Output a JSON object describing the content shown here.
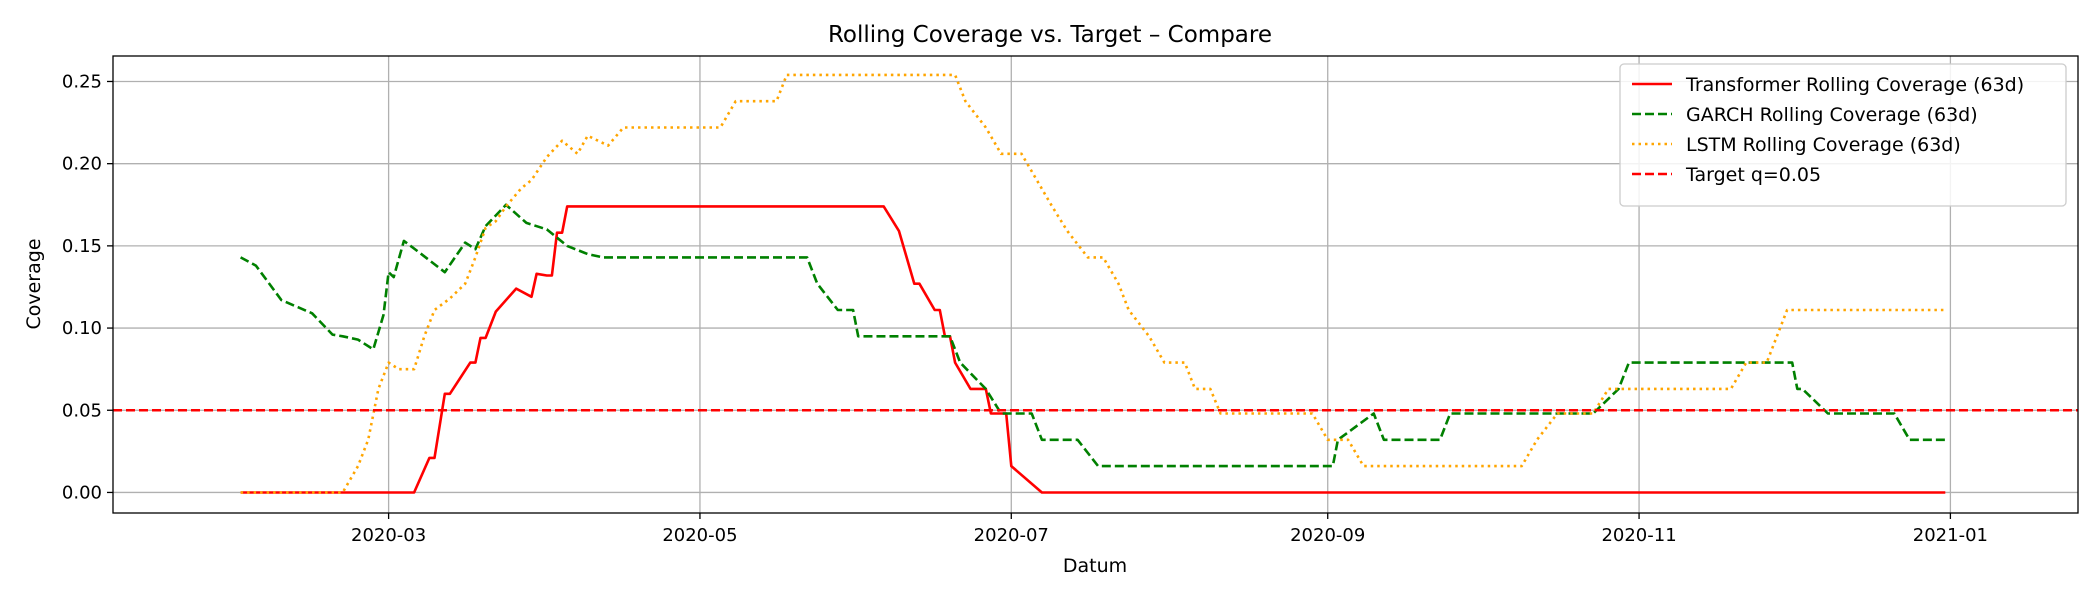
{
  "chart_data": {
    "type": "line",
    "title": "Rolling Coverage vs. Target – Compare",
    "xlabel": "Datum",
    "ylabel": "Coverage",
    "xlim": [
      "2020-01-07",
      "2021-01-26"
    ],
    "ylim": [
      -0.0125,
      0.2655
    ],
    "x_ticks": [
      "2020-03-01",
      "2020-05-01",
      "2020-07-01",
      "2020-09-01",
      "2020-11-01",
      "2021-01-01"
    ],
    "x_tick_labels": [
      "2020-03",
      "2020-05",
      "2020-07",
      "2020-09",
      "2020-11",
      "2021-01"
    ],
    "y_ticks": [
      0.0,
      0.05,
      0.1,
      0.15,
      0.2,
      0.25
    ],
    "y_tick_labels": [
      "0.00",
      "0.05",
      "0.10",
      "0.15",
      "0.20",
      "0.25"
    ],
    "grid": true,
    "legend_position": "upper-right",
    "series": [
      {
        "name": "Transformer Rolling Coverage (63d)",
        "color": "#ff0000",
        "style": "solid",
        "points": [
          [
            "2020-02-01",
            0.0
          ],
          [
            "2020-03-06",
            0.0
          ],
          [
            "2020-03-09",
            0.021
          ],
          [
            "2020-03-10",
            0.021
          ],
          [
            "2020-03-12",
            0.06
          ],
          [
            "2020-03-13",
            0.06
          ],
          [
            "2020-03-17",
            0.079
          ],
          [
            "2020-03-18",
            0.079
          ],
          [
            "2020-03-19",
            0.094
          ],
          [
            "2020-03-20",
            0.094
          ],
          [
            "2020-03-22",
            0.11
          ],
          [
            "2020-03-26",
            0.124
          ],
          [
            "2020-03-29",
            0.119
          ],
          [
            "2020-03-30",
            0.133
          ],
          [
            "2020-04-01",
            0.132
          ],
          [
            "2020-04-02",
            0.132
          ],
          [
            "2020-04-03",
            0.158
          ],
          [
            "2020-04-04",
            0.158
          ],
          [
            "2020-04-05",
            0.174
          ],
          [
            "2020-06-06",
            0.174
          ],
          [
            "2020-06-09",
            0.159
          ],
          [
            "2020-06-12",
            0.127
          ],
          [
            "2020-06-13",
            0.127
          ],
          [
            "2020-06-16",
            0.111
          ],
          [
            "2020-06-17",
            0.111
          ],
          [
            "2020-06-18",
            0.095
          ],
          [
            "2020-06-19",
            0.095
          ],
          [
            "2020-06-20",
            0.079
          ],
          [
            "2020-06-23",
            0.063
          ],
          [
            "2020-06-26",
            0.063
          ],
          [
            "2020-06-27",
            0.048
          ],
          [
            "2020-06-30",
            0.048
          ],
          [
            "2020-07-01",
            0.016
          ],
          [
            "2020-07-07",
            0.0
          ],
          [
            "2020-12-31",
            0.0
          ]
        ]
      },
      {
        "name": "GARCH Rolling Coverage (63d)",
        "color": "#008000",
        "style": "dashed",
        "points": [
          [
            "2020-02-01",
            0.143
          ],
          [
            "2020-02-04",
            0.138
          ],
          [
            "2020-02-09",
            0.117
          ],
          [
            "2020-02-15",
            0.109
          ],
          [
            "2020-02-19",
            0.096
          ],
          [
            "2020-02-21",
            0.095
          ],
          [
            "2020-02-24",
            0.093
          ],
          [
            "2020-02-27",
            0.087
          ],
          [
            "2020-02-29",
            0.108
          ],
          [
            "2020-03-01",
            0.134
          ],
          [
            "2020-03-02",
            0.131
          ],
          [
            "2020-03-04",
            0.153
          ],
          [
            "2020-03-07",
            0.146
          ],
          [
            "2020-03-12",
            0.134
          ],
          [
            "2020-03-16",
            0.152
          ],
          [
            "2020-03-18",
            0.148
          ],
          [
            "2020-03-20",
            0.162
          ],
          [
            "2020-03-24",
            0.175
          ],
          [
            "2020-03-28",
            0.164
          ],
          [
            "2020-04-01",
            0.16
          ],
          [
            "2020-04-05",
            0.15
          ],
          [
            "2020-04-09",
            0.145
          ],
          [
            "2020-04-12",
            0.143
          ],
          [
            "2020-05-22",
            0.143
          ],
          [
            "2020-05-24",
            0.127
          ],
          [
            "2020-05-28",
            0.111
          ],
          [
            "2020-05-31",
            0.111
          ],
          [
            "2020-06-01",
            0.095
          ],
          [
            "2020-06-19",
            0.095
          ],
          [
            "2020-06-21",
            0.079
          ],
          [
            "2020-06-26",
            0.063
          ],
          [
            "2020-06-29",
            0.048
          ],
          [
            "2020-07-05",
            0.048
          ],
          [
            "2020-07-07",
            0.032
          ],
          [
            "2020-07-14",
            0.032
          ],
          [
            "2020-07-18",
            0.016
          ],
          [
            "2020-09-02",
            0.016
          ],
          [
            "2020-09-03",
            0.032
          ],
          [
            "2020-09-10",
            0.048
          ],
          [
            "2020-09-12",
            0.032
          ],
          [
            "2020-09-23",
            0.032
          ],
          [
            "2020-09-25",
            0.048
          ],
          [
            "2020-10-23",
            0.048
          ],
          [
            "2020-10-28",
            0.063
          ],
          [
            "2020-10-30",
            0.079
          ],
          [
            "2020-12-01",
            0.079
          ],
          [
            "2020-12-02",
            0.063
          ],
          [
            "2020-12-03",
            0.063
          ],
          [
            "2020-12-08",
            0.048
          ],
          [
            "2020-12-21",
            0.048
          ],
          [
            "2020-12-24",
            0.032
          ],
          [
            "2020-12-31",
            0.032
          ]
        ]
      },
      {
        "name": "LSTM Rolling Coverage (63d)",
        "color": "#ffa500",
        "style": "dotted",
        "points": [
          [
            "2020-02-01",
            0.0
          ],
          [
            "2020-02-21",
            0.0
          ],
          [
            "2020-02-24",
            0.016
          ],
          [
            "2020-02-26",
            0.032
          ],
          [
            "2020-02-28",
            0.063
          ],
          [
            "2020-03-01",
            0.079
          ],
          [
            "2020-03-03",
            0.075
          ],
          [
            "2020-03-06",
            0.075
          ],
          [
            "2020-03-08",
            0.095
          ],
          [
            "2020-03-10",
            0.111
          ],
          [
            "2020-03-13",
            0.118
          ],
          [
            "2020-03-16",
            0.127
          ],
          [
            "2020-03-18",
            0.143
          ],
          [
            "2020-03-20",
            0.161
          ],
          [
            "2020-03-22",
            0.165
          ],
          [
            "2020-03-24",
            0.174
          ],
          [
            "2020-03-27",
            0.185
          ],
          [
            "2020-03-29",
            0.19
          ],
          [
            "2020-04-01",
            0.204
          ],
          [
            "2020-04-04",
            0.214
          ],
          [
            "2020-04-07",
            0.206
          ],
          [
            "2020-04-09",
            0.217
          ],
          [
            "2020-04-13",
            0.211
          ],
          [
            "2020-04-16",
            0.222
          ],
          [
            "2020-05-05",
            0.222
          ],
          [
            "2020-05-08",
            0.238
          ],
          [
            "2020-05-16",
            0.238
          ],
          [
            "2020-05-18",
            0.254
          ],
          [
            "2020-06-20",
            0.254
          ],
          [
            "2020-06-22",
            0.238
          ],
          [
            "2020-06-26",
            0.222
          ],
          [
            "2020-06-29",
            0.206
          ],
          [
            "2020-07-03",
            0.206
          ],
          [
            "2020-07-06",
            0.19
          ],
          [
            "2020-07-09",
            0.174
          ],
          [
            "2020-07-12",
            0.159
          ],
          [
            "2020-07-16",
            0.143
          ],
          [
            "2020-07-19",
            0.143
          ],
          [
            "2020-07-22",
            0.127
          ],
          [
            "2020-07-24",
            0.111
          ],
          [
            "2020-07-28",
            0.095
          ],
          [
            "2020-07-31",
            0.079
          ],
          [
            "2020-08-04",
            0.079
          ],
          [
            "2020-08-06",
            0.063
          ],
          [
            "2020-08-09",
            0.063
          ],
          [
            "2020-08-11",
            0.048
          ],
          [
            "2020-08-29",
            0.048
          ],
          [
            "2020-09-01",
            0.032
          ],
          [
            "2020-09-05",
            0.032
          ],
          [
            "2020-09-08",
            0.016
          ],
          [
            "2020-10-09",
            0.016
          ],
          [
            "2020-10-12",
            0.032
          ],
          [
            "2020-10-16",
            0.048
          ],
          [
            "2020-10-23",
            0.048
          ],
          [
            "2020-10-26",
            0.063
          ],
          [
            "2020-11-19",
            0.063
          ],
          [
            "2020-11-22",
            0.079
          ],
          [
            "2020-11-26",
            0.079
          ],
          [
            "2020-11-28",
            0.095
          ],
          [
            "2020-11-30",
            0.111
          ],
          [
            "2020-12-31",
            0.111
          ]
        ]
      },
      {
        "name": "Target q=0.05",
        "color": "#ff0000",
        "style": "dashed",
        "hline": 0.05
      }
    ]
  }
}
